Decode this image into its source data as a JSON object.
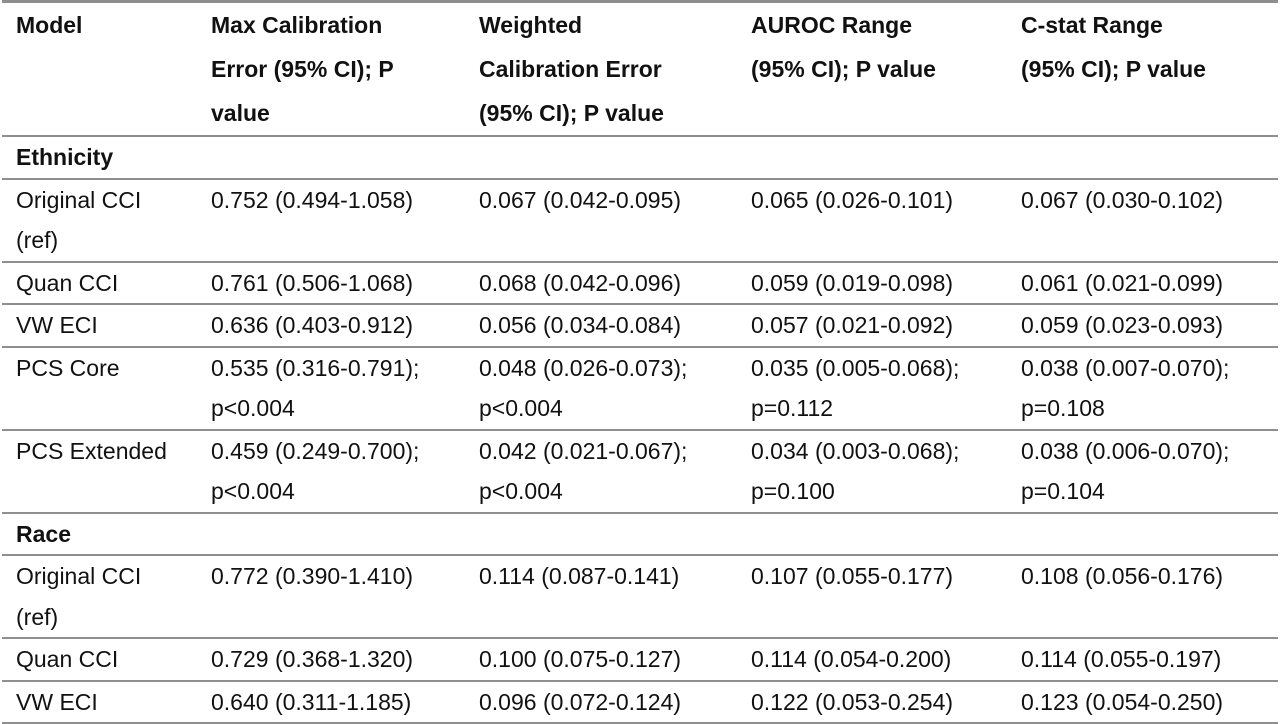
{
  "headers": [
    [
      "Model"
    ],
    [
      "Max Calibration",
      "Error (95% CI); P",
      "value"
    ],
    [
      "Weighted",
      "Calibration Error",
      "(95% CI); P value"
    ],
    [
      "AUROC Range",
      "(95% CI);  P value"
    ],
    [
      "C-stat Range",
      "(95% CI);  P value"
    ]
  ],
  "sections": [
    {
      "title": "Ethnicity",
      "rows": [
        [
          [
            "Original CCI",
            "(ref)"
          ],
          [
            "0.752 (0.494-1.058)"
          ],
          [
            "0.067 (0.042-0.095)"
          ],
          [
            "0.065 (0.026-0.101)"
          ],
          [
            "0.067 (0.030-0.102)"
          ]
        ],
        [
          [
            "Quan CCI"
          ],
          [
            "0.761 (0.506-1.068)"
          ],
          [
            "0.068 (0.042-0.096)"
          ],
          [
            "0.059 (0.019-0.098)"
          ],
          [
            "0.061 (0.021-0.099)"
          ]
        ],
        [
          [
            "VW ECI"
          ],
          [
            "0.636 (0.403-0.912)"
          ],
          [
            "0.056 (0.034-0.084)"
          ],
          [
            "0.057 (0.021-0.092)"
          ],
          [
            "0.059 (0.023-0.093)"
          ]
        ],
        [
          [
            "PCS Core"
          ],
          [
            "0.535 (0.316-0.791);",
            "p<0.004"
          ],
          [
            "0.048 (0.026-0.073);",
            "p<0.004"
          ],
          [
            "0.035 (0.005-0.068);",
            "p=0.112"
          ],
          [
            "0.038 (0.007-0.070);",
            "p=0.108"
          ]
        ],
        [
          [
            "PCS Extended"
          ],
          [
            "0.459 (0.249-0.700);",
            "p<0.004"
          ],
          [
            "0.042 (0.021-0.067);",
            "p<0.004"
          ],
          [
            "0.034 (0.003-0.068);",
            "p=0.100"
          ],
          [
            "0.038 (0.006-0.070);",
            "p=0.104"
          ]
        ]
      ]
    },
    {
      "title": "Race",
      "rows": [
        [
          [
            "Original CCI",
            "(ref)"
          ],
          [
            "0.772 (0.390-1.410)"
          ],
          [
            "0.114 (0.087-0.141)"
          ],
          [
            "0.107 (0.055-0.177)"
          ],
          [
            "0.108 (0.056-0.176)"
          ]
        ],
        [
          [
            "Quan CCI"
          ],
          [
            "0.729 (0.368-1.320)"
          ],
          [
            "0.100 (0.075-0.127)"
          ],
          [
            "0.114 (0.054-0.200)"
          ],
          [
            "0.114 (0.055-0.197)"
          ]
        ],
        [
          [
            "VW ECI"
          ],
          [
            "0.640 (0.311-1.185)"
          ],
          [
            "0.096 (0.072-0.124)"
          ],
          [
            "0.122 (0.053-0.254)"
          ],
          [
            "0.123 (0.054-0.250)"
          ]
        ]
      ]
    }
  ]
}
